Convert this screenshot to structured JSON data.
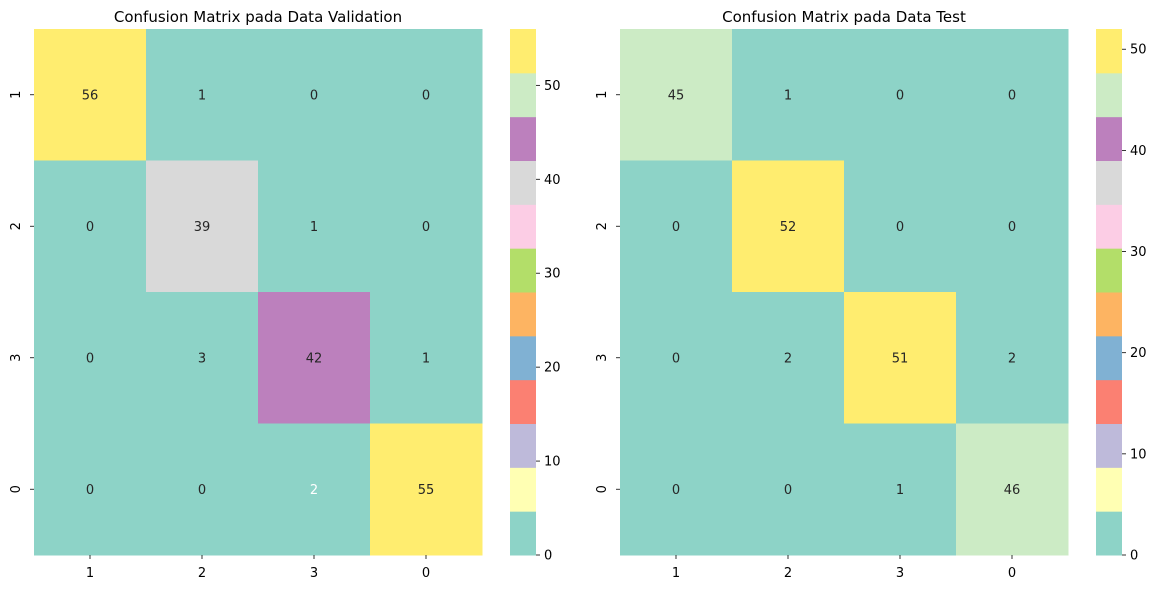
{
  "chart_data": [
    {
      "type": "heatmap",
      "title": "Confusion Matrix pada Data Validation",
      "row_labels": [
        "1",
        "2",
        "3",
        "0"
      ],
      "col_labels": [
        "1",
        "2",
        "3",
        "0"
      ],
      "values": [
        [
          56,
          1,
          0,
          0
        ],
        [
          0,
          39,
          1,
          0
        ],
        [
          0,
          3,
          42,
          1
        ],
        [
          0,
          0,
          2,
          55
        ]
      ],
      "vmin": 0,
      "vmax": 56,
      "colorbar_ticks": [
        "0",
        "10",
        "20",
        "30",
        "40",
        "50"
      ],
      "colormap": "Set3",
      "annotation_colors": [
        "#262626",
        "#262626",
        "#262626",
        "#262626",
        "#262626",
        "#262626",
        "#262626",
        "#262626",
        "#262626",
        "#262626",
        "#262626",
        "#262626",
        "#262626",
        "#262626",
        "#ffffff",
        "#262626"
      ]
    },
    {
      "type": "heatmap",
      "title": "Confusion Matrix pada Data Test",
      "row_labels": [
        "1",
        "2",
        "3",
        "0"
      ],
      "col_labels": [
        "1",
        "2",
        "3",
        "0"
      ],
      "values": [
        [
          45,
          1,
          0,
          0
        ],
        [
          0,
          52,
          0,
          0
        ],
        [
          0,
          2,
          51,
          2
        ],
        [
          0,
          0,
          1,
          46
        ]
      ],
      "vmin": 0,
      "vmax": 52,
      "colorbar_ticks": [
        "0",
        "10",
        "20",
        "30",
        "40",
        "50"
      ],
      "colormap": "Set3"
    }
  ],
  "palette": [
    "#8dd3c7",
    "#ffffb3",
    "#bebada",
    "#fb8072",
    "#80b1d3",
    "#fdb462",
    "#b3de69",
    "#fccde5",
    "#d9d9d9",
    "#bc80bd",
    "#ccebc5",
    "#ffed6f"
  ]
}
